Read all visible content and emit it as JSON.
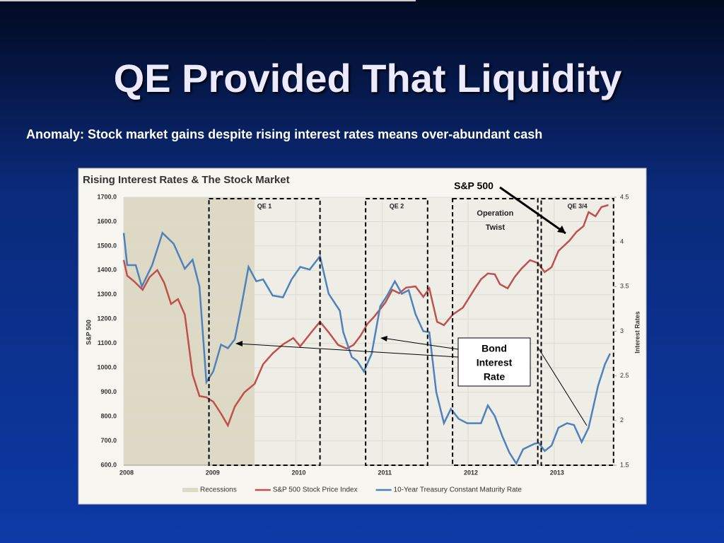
{
  "slide": {
    "title": "QE Provided That Liquidity",
    "subtitle": "Anomaly:  Stock market gains despite rising interest rates means over-abundant cash"
  },
  "chart_data": {
    "type": "line",
    "title": "Rising Interest Rates & The Stock Market",
    "y_label": "S&P 500",
    "y2_label": "Interest Rates",
    "xlim": [
      2008,
      2013.7
    ],
    "xticks": [
      2008,
      2009,
      2010,
      2011,
      2012,
      2013
    ],
    "ylim": [
      600,
      1700
    ],
    "yticks": [
      {
        "value": 600,
        "label": "600.0"
      },
      {
        "value": 700,
        "label": "700.0"
      },
      {
        "value": 800,
        "label": "800.0"
      },
      {
        "value": 900,
        "label": "900.0"
      },
      {
        "value": 1000,
        "label": "1000.0"
      },
      {
        "value": 1100,
        "label": "1100.0"
      },
      {
        "value": 1200,
        "label": "1200.0"
      },
      {
        "value": 1300,
        "label": "1300.0"
      },
      {
        "value": 1400,
        "label": "1400.0"
      },
      {
        "value": 1500,
        "label": "1500.0"
      },
      {
        "value": 1600,
        "label": "1600.0"
      },
      {
        "value": 1700,
        "label": "1700.0"
      }
    ],
    "y2lim": [
      1.5,
      4.5
    ],
    "y2ticks": [
      1.5,
      2,
      2.5,
      3,
      3.5,
      4,
      4.5
    ],
    "grid": true,
    "recession": {
      "name": "Recessions",
      "color": "#ddd9c4",
      "range": [
        2008,
        2009.52
      ]
    },
    "series": [
      {
        "name": "S&P 500 Stock Price Index",
        "color": "#c0504d",
        "x": [
          2008.0,
          2008.04,
          2008.12,
          2008.22,
          2008.3,
          2008.39,
          2008.47,
          2008.55,
          2008.63,
          2008.71,
          2008.8,
          2008.88,
          2008.96,
          2009.04,
          2009.13,
          2009.21,
          2009.29,
          2009.4,
          2009.52,
          2009.62,
          2009.73,
          2009.85,
          2009.97,
          2010.05,
          2010.18,
          2010.28,
          2010.38,
          2010.49,
          2010.59,
          2010.67,
          2010.75,
          2010.83,
          2010.91,
          2011.04,
          2011.12,
          2011.2,
          2011.28,
          2011.39,
          2011.48,
          2011.55,
          2011.64,
          2011.72,
          2011.82,
          2011.94,
          2012.07,
          2012.15,
          2012.23,
          2012.31,
          2012.37,
          2012.46,
          2012.54,
          2012.62,
          2012.72,
          2012.81,
          2012.89,
          2012.97,
          2013.05,
          2013.18,
          2013.26,
          2013.34,
          2013.4,
          2013.48,
          2013.55,
          2013.63
        ],
        "values": [
          1442,
          1378,
          1355,
          1320,
          1372,
          1401,
          1349,
          1262,
          1282,
          1218,
          972,
          884,
          879,
          861,
          812,
          763,
          841,
          899,
          934,
          1015,
          1059,
          1096,
          1122,
          1088,
          1146,
          1189,
          1146,
          1094,
          1079,
          1094,
          1131,
          1180,
          1210,
          1268,
          1320,
          1306,
          1329,
          1334,
          1291,
          1326,
          1189,
          1175,
          1218,
          1247,
          1320,
          1363,
          1387,
          1384,
          1343,
          1326,
          1372,
          1407,
          1442,
          1430,
          1393,
          1413,
          1480,
          1523,
          1558,
          1581,
          1639,
          1622,
          1660,
          1668
        ]
      },
      {
        "name": "10-Year Treasury Constant Maturity Rate",
        "color": "#4f81bd",
        "axis": "y2",
        "x": [
          2008.0,
          2008.04,
          2008.14,
          2008.21,
          2008.33,
          2008.45,
          2008.58,
          2008.71,
          2008.8,
          2008.88,
          2008.96,
          2009.04,
          2009.13,
          2009.21,
          2009.29,
          2009.37,
          2009.45,
          2009.54,
          2009.62,
          2009.73,
          2009.85,
          2009.95,
          2010.05,
          2010.16,
          2010.28,
          2010.38,
          2010.51,
          2010.55,
          2010.65,
          2010.71,
          2010.79,
          2010.88,
          2010.98,
          2011.06,
          2011.15,
          2011.23,
          2011.31,
          2011.39,
          2011.48,
          2011.55,
          2011.63,
          2011.72,
          2011.8,
          2011.89,
          2011.99,
          2012.15,
          2012.23,
          2012.31,
          2012.4,
          2012.48,
          2012.56,
          2012.64,
          2012.77,
          2012.82,
          2012.89,
          2012.97,
          2013.05,
          2013.15,
          2013.23,
          2013.32,
          2013.4,
          2013.51,
          2013.59,
          2013.65
        ],
        "values": [
          4.1,
          3.74,
          3.74,
          3.5,
          3.74,
          4.1,
          3.98,
          3.7,
          3.8,
          3.5,
          2.43,
          2.55,
          2.85,
          2.81,
          2.91,
          3.3,
          3.72,
          3.56,
          3.58,
          3.4,
          3.38,
          3.58,
          3.72,
          3.69,
          3.84,
          3.42,
          3.23,
          2.99,
          2.71,
          2.67,
          2.55,
          2.75,
          3.28,
          3.4,
          3.56,
          3.42,
          3.46,
          3.19,
          3.0,
          2.99,
          2.32,
          1.97,
          2.13,
          2.02,
          1.97,
          1.97,
          2.17,
          2.05,
          1.82,
          1.64,
          1.52,
          1.68,
          1.74,
          1.75,
          1.66,
          1.72,
          1.92,
          1.97,
          1.95,
          1.76,
          1.92,
          2.39,
          2.63,
          2.75
        ]
      }
    ],
    "annotations": [
      {
        "lines": [
          "QE 1"
        ],
        "range": [
          2008.99,
          2010.28
        ]
      },
      {
        "lines": [
          "QE 2"
        ],
        "range": [
          2010.81,
          2011.53
        ]
      },
      {
        "lines": [
          "Operation",
          "Twist"
        ],
        "range": [
          2011.82,
          2012.81
        ]
      },
      {
        "lines": [
          "QE 3/4"
        ],
        "range": [
          2012.85,
          2013.69
        ]
      }
    ],
    "callouts": {
      "sp": "S&P 500",
      "bond": [
        "Bond",
        "Interest",
        "Rate"
      ]
    }
  }
}
